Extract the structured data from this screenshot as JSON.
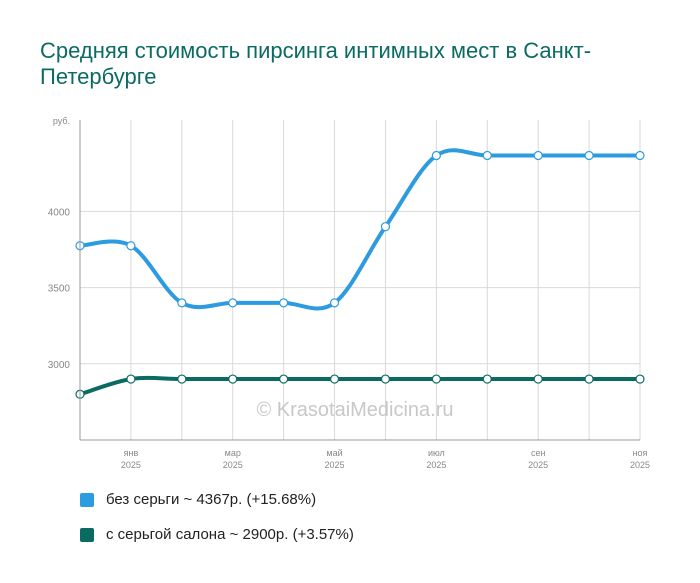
{
  "title": "Средняя стоимость пирсинга интимных мест в Санкт-Петербурге",
  "watermark": "© KrasotaiMedicina.ru",
  "colors": {
    "series1": "#2d9be0",
    "series2": "#0b6b63",
    "grid": "#d9d9d9",
    "axis": "#999999"
  },
  "legend": [
    {
      "label": "без серьги ~ 4367р. (+15.68%)",
      "color": "#2d9be0"
    },
    {
      "label": "с серьгой салона ~ 2900р. (+3.57%)",
      "color": "#0b6b63"
    }
  ],
  "chart_data": {
    "type": "line",
    "y_unit_label": "руб.",
    "ylim": [
      2500,
      4600
    ],
    "yticks": [
      3000,
      3500,
      4000
    ],
    "grid": true,
    "x_ticks": [
      {
        "index": 1,
        "month": "янв",
        "year": "2025"
      },
      {
        "index": 3,
        "month": "мар",
        "year": "2025"
      },
      {
        "index": 5,
        "month": "май",
        "year": "2025"
      },
      {
        "index": 7,
        "month": "июл",
        "year": "2025"
      },
      {
        "index": 9,
        "month": "сен",
        "year": "2025"
      },
      {
        "index": 11,
        "month": "ноя",
        "year": "2025"
      }
    ],
    "x": [
      "дек 2024",
      "янв 2025",
      "фев 2025",
      "мар 2025",
      "апр 2025",
      "май 2025",
      "июн 2025",
      "июл 2025",
      "авг 2025",
      "сен 2025",
      "окт 2025",
      "ноя 2025"
    ],
    "series": [
      {
        "name": "без серьги",
        "values": [
          3775,
          3775,
          3400,
          3400,
          3400,
          3400,
          3900,
          4367,
          4367,
          4367,
          4367,
          4367
        ]
      },
      {
        "name": "с серьгой салона",
        "values": [
          2800,
          2900,
          2900,
          2900,
          2900,
          2900,
          2900,
          2900,
          2900,
          2900,
          2900,
          2900
        ]
      }
    ]
  }
}
